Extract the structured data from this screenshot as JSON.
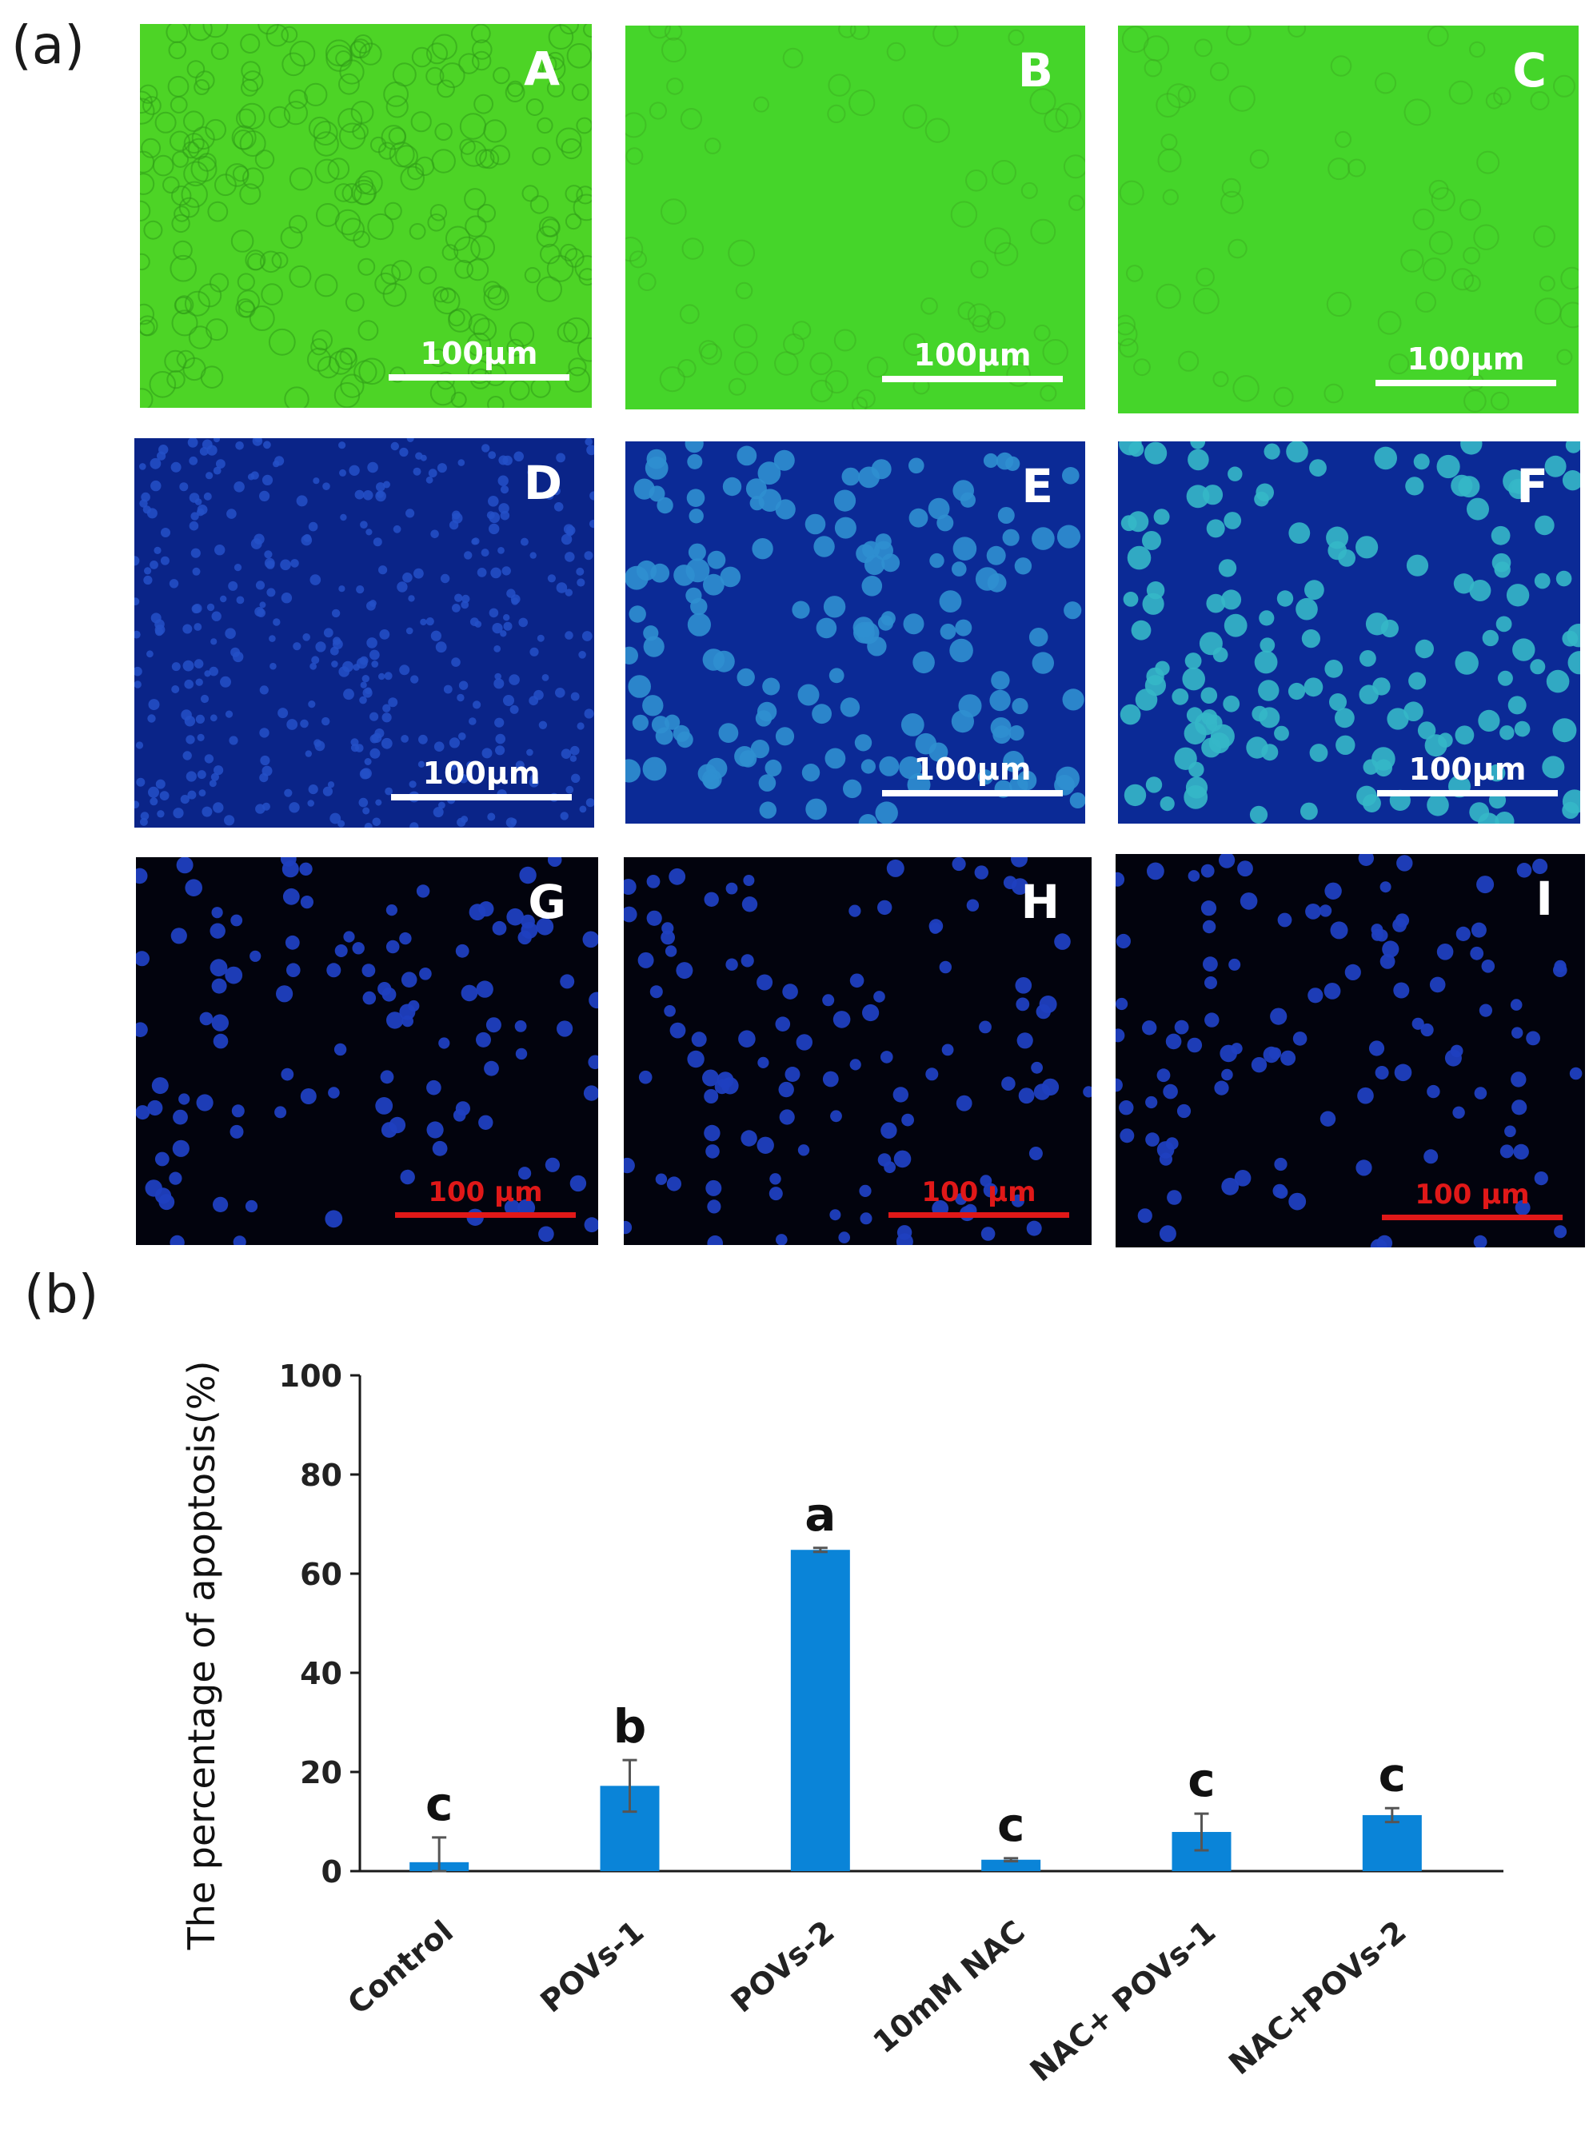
{
  "figure": {
    "panel_a_label": "(a)",
    "panel_b_label": "(b)",
    "tiles": [
      {
        "letter": "A",
        "scale": "100μm",
        "style": "green",
        "bar": "white"
      },
      {
        "letter": "B",
        "scale": "100μm",
        "style": "green-light",
        "bar": "white"
      },
      {
        "letter": "C",
        "scale": "100μm",
        "style": "green-light",
        "bar": "white"
      },
      {
        "letter": "D",
        "scale": "100μm",
        "style": "blue",
        "bar": "white"
      },
      {
        "letter": "E",
        "scale": "100μm",
        "style": "blue-bright",
        "bar": "white"
      },
      {
        "letter": "F",
        "scale": "100μm",
        "style": "blue-bright",
        "bar": "white"
      },
      {
        "letter": "G",
        "scale": "100 μm",
        "style": "dark",
        "bar": "red"
      },
      {
        "letter": "H",
        "scale": "100 μm",
        "style": "dark",
        "bar": "red"
      },
      {
        "letter": "I",
        "scale": "100 μm",
        "style": "dark",
        "bar": "red"
      }
    ]
  },
  "colors": {
    "bar_fill": "#0a84d8",
    "axis": "#1a1a1a",
    "scale_red": "#e01818"
  },
  "chart_data": {
    "type": "bar",
    "categories": [
      "Control",
      "POVs-1",
      "POVs-2",
      "10mM NAC",
      "NAC+ POVs-1",
      "NAC+POVs-2"
    ],
    "values": [
      1.8,
      17.2,
      64.8,
      2.3,
      7.9,
      11.3
    ],
    "errors": [
      5.0,
      5.2,
      0.4,
      0.3,
      3.7,
      1.4
    ],
    "significance_letters": [
      "c",
      "b",
      "a",
      "c",
      "c",
      "c"
    ],
    "ylabel": "The percentage of  apoptosis(%)",
    "xlabel": "",
    "ylim": [
      0,
      100
    ],
    "yticks": [
      0,
      20,
      40,
      60,
      80,
      100
    ],
    "grid": false,
    "legend": "none"
  }
}
